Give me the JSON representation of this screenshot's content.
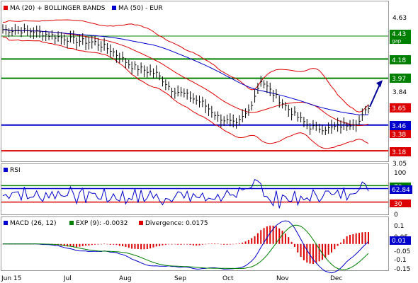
{
  "main": {
    "legend": [
      {
        "color": "#dd0000",
        "text": "MA (20) + BOLLINGER BANDS"
      },
      {
        "color": "#0000cc",
        "text": "MA (50) - EUR"
      }
    ],
    "ticks": [
      "4.63",
      "3.84",
      "3.05"
    ],
    "levels": [
      {
        "value": 4.43,
        "label": "4.43",
        "sub": "gap",
        "color": "#008000",
        "style": "thin"
      },
      {
        "value": 4.18,
        "label": "4.18",
        "color": "#008000",
        "style": "thick"
      },
      {
        "value": 3.97,
        "label": "3.97",
        "color": "#008000",
        "style": "thick"
      },
      {
        "value": 3.46,
        "label": "3.46",
        "color": "#0000cc",
        "style": "thick"
      },
      {
        "value": 3.18,
        "label": "3.18",
        "color": "#dd0000",
        "style": "thick"
      }
    ],
    "price_tags": [
      {
        "value": 3.65,
        "label": "3.65",
        "color": "#dd0000"
      },
      {
        "value": 3.38,
        "label": "3.38",
        "color": "#dd0000"
      }
    ]
  },
  "rsi": {
    "legend": "RSI",
    "ticks": [
      "100",
      "70",
      "30",
      "0"
    ],
    "value_label": "62.84"
  },
  "macd": {
    "legend": [
      {
        "color": "#0000cc",
        "text": "MACD (26, 12)"
      },
      {
        "color": "#008000",
        "text": "EXP (9): -0.0032"
      },
      {
        "color": "#dd0000",
        "text": "Divergence: 0.0175"
      }
    ],
    "ticks": [
      "0.1",
      "0.05",
      "-0.05",
      "-0.1",
      "-0.15"
    ],
    "value_label": "0.01"
  },
  "xaxis": [
    "Jun 15",
    "Jul",
    "Aug",
    "Sep",
    "Oct",
    "Nov",
    "Dec"
  ],
  "chart_data": {
    "type": "line",
    "x": [
      "Jun 15",
      "Jul",
      "Aug",
      "Sep",
      "Oct",
      "Nov",
      "Dec"
    ],
    "close_approx": [
      4.48,
      4.35,
      4.02,
      3.72,
      3.82,
      3.42,
      3.55
    ],
    "price_ylim": [
      3.05,
      4.7
    ],
    "rsi_ylim": [
      0,
      100
    ],
    "rsi_levels": [
      70,
      30
    ],
    "rsi_last": 62.84,
    "macd_ylim": [
      -0.15,
      0.1
    ],
    "macd_last": 0.01,
    "horizontal_levels": [
      4.43,
      4.18,
      3.97,
      3.46,
      3.18
    ]
  }
}
